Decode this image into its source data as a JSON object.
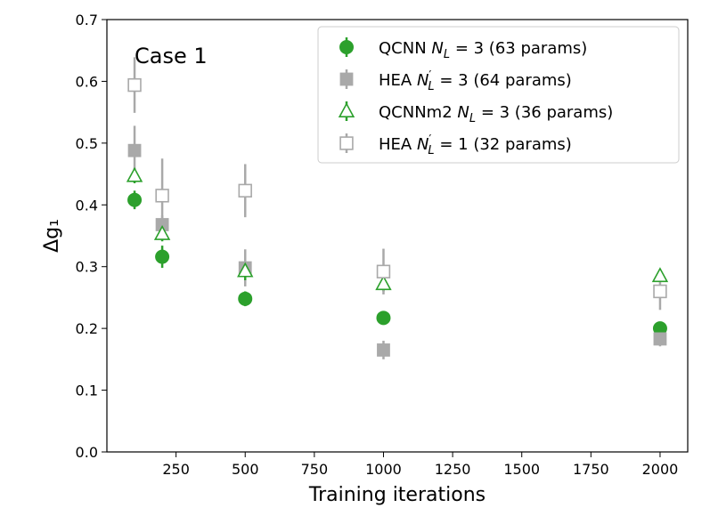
{
  "chart_data": {
    "type": "scatter",
    "title": "",
    "annotation": "Case 1",
    "xlabel": "Training iterations",
    "ylabel": "Δg₁",
    "xlim": [
      0,
      2100
    ],
    "ylim": [
      0.0,
      0.7
    ],
    "xticks": [
      250,
      500,
      750,
      1000,
      1250,
      1500,
      1750,
      2000
    ],
    "yticks": [
      0.0,
      0.1,
      0.2,
      0.3,
      0.4,
      0.5,
      0.6,
      0.7
    ],
    "xtick_labels": [
      "250",
      "500",
      "750",
      "1000",
      "1250",
      "1500",
      "1750",
      "2000"
    ],
    "ytick_labels": [
      "0.0",
      "0.1",
      "0.2",
      "0.3",
      "0.4",
      "0.5",
      "0.6",
      "0.7"
    ],
    "grid": false,
    "legend_position": "top-right",
    "series": [
      {
        "name": "QCNN N_L = 3 (63 params)",
        "legend_prefix": "QCNN ",
        "legend_sym": "N",
        "legend_sub": "L",
        "legend_prime": "",
        "legend_suffix": " = 3 (63 params)",
        "marker": "circle",
        "filled": true,
        "color": "#2ca02c",
        "x": [
          100,
          200,
          500,
          1000,
          2000
        ],
        "y": [
          0.408,
          0.316,
          0.248,
          0.217,
          0.2
        ],
        "err": [
          0.015,
          0.018,
          0.012,
          0.006,
          0.008
        ]
      },
      {
        "name": "HEA N'_L = 3 (64 params)",
        "legend_prefix": "HEA ",
        "legend_sym": "N",
        "legend_sub": "L",
        "legend_prime": "′",
        "legend_suffix": " = 3 (64 params)",
        "marker": "square",
        "filled": true,
        "color": "#a9a9a9",
        "x": [
          100,
          200,
          500,
          1000,
          2000
        ],
        "y": [
          0.488,
          0.368,
          0.298,
          0.165,
          0.183
        ],
        "err": [
          0.04,
          0.015,
          0.03,
          0.015,
          0.012
        ]
      },
      {
        "name": "QCNNm2 N_L = 3 (36 params)",
        "legend_prefix": "QCNNm2 ",
        "legend_sym": "N",
        "legend_sub": "L",
        "legend_prime": "",
        "legend_suffix": " = 3 (36 params)",
        "marker": "triangle",
        "filled": false,
        "color": "#2ca02c",
        "x": [
          100,
          200,
          500,
          1000,
          2000
        ],
        "y": [
          0.447,
          0.353,
          0.293,
          0.272,
          0.285
        ],
        "err": [
          0.012,
          0.012,
          0.015,
          0.012,
          0.01
        ]
      },
      {
        "name": "HEA N'_L = 1 (32 params)",
        "legend_prefix": "HEA ",
        "legend_sym": "N",
        "legend_sub": "L",
        "legend_prime": "′",
        "legend_suffix": " = 1 (32 params)",
        "marker": "square",
        "filled": false,
        "color": "#a9a9a9",
        "x": [
          100,
          200,
          500,
          1000,
          2000
        ],
        "y": [
          0.594,
          0.415,
          0.423,
          0.292,
          0.26
        ],
        "err": [
          0.045,
          0.06,
          0.043,
          0.037,
          0.03
        ]
      }
    ]
  }
}
